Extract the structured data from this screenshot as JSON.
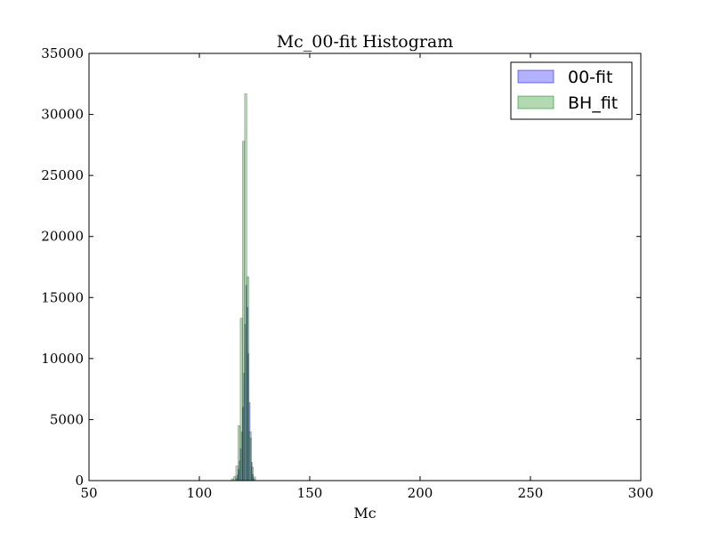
{
  "chart_data": {
    "type": "bar",
    "subtype": "histogram",
    "title": "Mc_00-fit Histogram",
    "xlabel": "Mc",
    "ylabel": "",
    "xlim": [
      50,
      300
    ],
    "ylim": [
      0,
      35000
    ],
    "x_ticks": [
      "50",
      "100",
      "150",
      "200",
      "250",
      "300"
    ],
    "y_ticks": [
      "0",
      "5000",
      "10000",
      "15000",
      "20000",
      "25000",
      "30000",
      "35000"
    ],
    "grid": false,
    "legend_position": "top-right",
    "series": [
      {
        "name": "00-fit",
        "color": "#0000ff",
        "alpha": 0.3,
        "bin_width": 0.5,
        "bins": [
          [
            116.5,
            200
          ],
          [
            117.0,
            450
          ],
          [
            117.5,
            900
          ],
          [
            118.0,
            1600
          ],
          [
            118.5,
            2600
          ],
          [
            119.0,
            4000
          ],
          [
            119.5,
            6000
          ],
          [
            120.0,
            8800
          ],
          [
            120.5,
            12800
          ],
          [
            121.0,
            16000
          ],
          [
            121.5,
            14200
          ],
          [
            122.0,
            10400
          ],
          [
            122.5,
            6400
          ],
          [
            123.0,
            3500
          ],
          [
            123.5,
            1500
          ],
          [
            124.0,
            500
          ],
          [
            124.5,
            150
          ]
        ]
      },
      {
        "name": "BH_fit",
        "color": "#008000",
        "alpha": 0.3,
        "bin_width": 1.0,
        "bins": [
          [
            114.5,
            150
          ],
          [
            115.5,
            350
          ],
          [
            116.5,
            1200
          ],
          [
            117.5,
            4500
          ],
          [
            118.5,
            13300
          ],
          [
            119.5,
            27800
          ],
          [
            120.5,
            31700
          ],
          [
            121.5,
            16700
          ],
          [
            122.5,
            4000
          ],
          [
            123.5,
            1100
          ],
          [
            124.5,
            300
          ]
        ]
      }
    ]
  }
}
